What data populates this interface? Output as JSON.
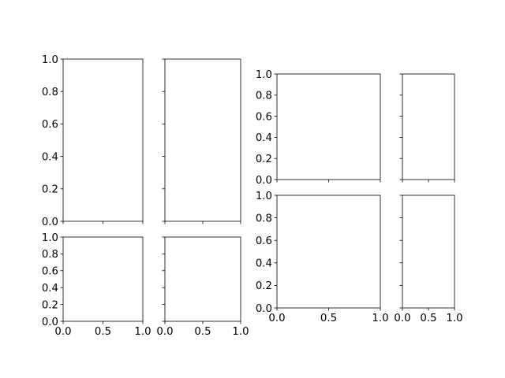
{
  "chart_data": [
    {
      "type": "line",
      "group": "left",
      "row": 0,
      "col": 0,
      "series": [],
      "xlim": [
        0,
        1
      ],
      "ylim": [
        0,
        1
      ],
      "xticks": [
        "0.0",
        "0.5",
        "1.0"
      ],
      "yticks": [
        "0.0",
        "0.2",
        "0.4",
        "0.6",
        "0.8",
        "1.0"
      ],
      "show_xticklabels": false,
      "show_yticklabels": true,
      "grid": false
    },
    {
      "type": "line",
      "group": "left",
      "row": 0,
      "col": 1,
      "series": [],
      "xlim": [
        0,
        1
      ],
      "ylim": [
        0,
        1
      ],
      "xticks": [
        "0.0",
        "0.5",
        "1.0"
      ],
      "yticks": [
        "0.0",
        "0.2",
        "0.4",
        "0.6",
        "0.8",
        "1.0"
      ],
      "show_xticklabels": false,
      "show_yticklabels": false,
      "grid": false
    },
    {
      "type": "line",
      "group": "left",
      "row": 1,
      "col": 0,
      "series": [],
      "xlim": [
        0,
        1
      ],
      "ylim": [
        0,
        1
      ],
      "xticks": [
        "0.0",
        "0.5",
        "1.0"
      ],
      "yticks": [
        "0.0",
        "0.2",
        "0.4",
        "0.6",
        "0.8",
        "1.0"
      ],
      "show_xticklabels": true,
      "show_yticklabels": true,
      "grid": false
    },
    {
      "type": "line",
      "group": "left",
      "row": 1,
      "col": 1,
      "series": [],
      "xlim": [
        0,
        1
      ],
      "ylim": [
        0,
        1
      ],
      "xticks": [
        "0.0",
        "0.5",
        "1.0"
      ],
      "yticks": [
        "0.0",
        "0.2",
        "0.4",
        "0.6",
        "0.8",
        "1.0"
      ],
      "show_xticklabels": true,
      "show_yticklabels": false,
      "grid": false
    },
    {
      "type": "line",
      "group": "right",
      "row": 0,
      "col": 0,
      "series": [],
      "xlim": [
        0,
        1
      ],
      "ylim": [
        0,
        1
      ],
      "xticks": [
        "0.0",
        "0.5",
        "1.0"
      ],
      "yticks": [
        "0.0",
        "0.2",
        "0.4",
        "0.6",
        "0.8",
        "1.0"
      ],
      "show_xticklabels": false,
      "show_yticklabels": true,
      "grid": false
    },
    {
      "type": "line",
      "group": "right",
      "row": 0,
      "col": 1,
      "series": [],
      "xlim": [
        0,
        1
      ],
      "ylim": [
        0,
        1
      ],
      "xticks": [
        "0.0",
        "0.5",
        "1.0"
      ],
      "yticks": [
        "0.0",
        "0.2",
        "0.4",
        "0.6",
        "0.8",
        "1.0"
      ],
      "show_xticklabels": false,
      "show_yticklabels": false,
      "grid": false
    },
    {
      "type": "line",
      "group": "right",
      "row": 1,
      "col": 0,
      "series": [],
      "xlim": [
        0,
        1
      ],
      "ylim": [
        0,
        1
      ],
      "xticks": [
        "0.0",
        "0.5",
        "1.0"
      ],
      "yticks": [
        "0.0",
        "0.2",
        "0.4",
        "0.6",
        "0.8",
        "1.0"
      ],
      "show_xticklabels": true,
      "show_yticklabels": true,
      "grid": false
    },
    {
      "type": "line",
      "group": "right",
      "row": 1,
      "col": 1,
      "series": [],
      "xlim": [
        0,
        1
      ],
      "ylim": [
        0,
        1
      ],
      "xticks": [
        "0.0",
        "0.5",
        "1.0"
      ],
      "yticks": [
        "0.0",
        "0.2",
        "0.4",
        "0.6",
        "0.8",
        "1.0"
      ],
      "show_xticklabels": true,
      "show_yticklabels": false,
      "grid": false
    }
  ]
}
